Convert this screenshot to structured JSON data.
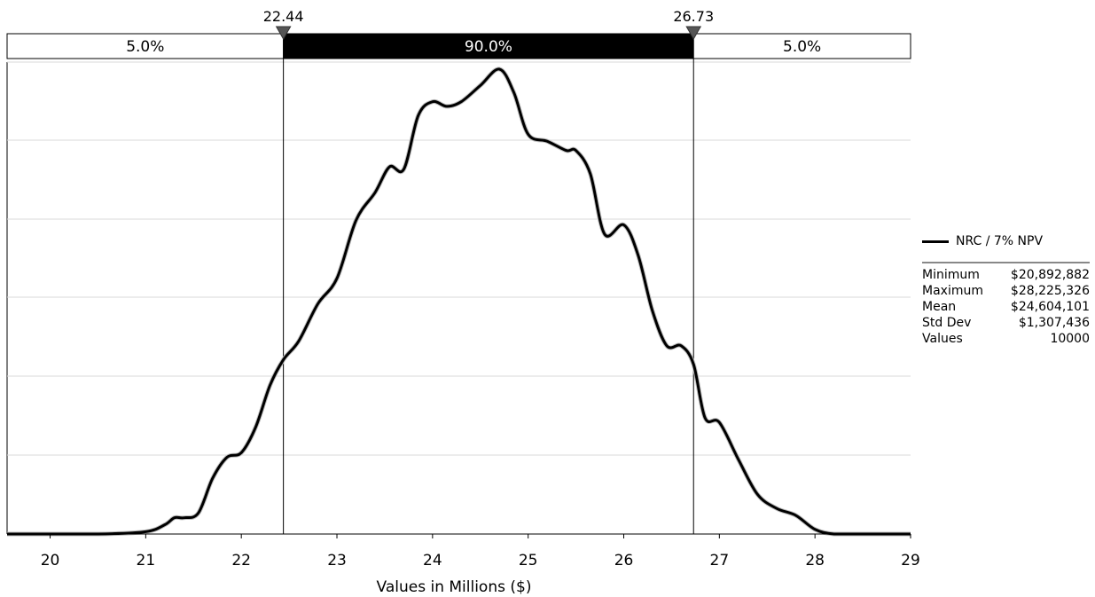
{
  "chart_data": {
    "type": "line",
    "xlabel": "Values in Millions ($)",
    "x_ticks": [
      "20",
      "21",
      "22",
      "23",
      "24",
      "25",
      "26",
      "27",
      "28",
      "29"
    ],
    "xlim": [
      19.55,
      29
    ],
    "grid": true,
    "series": [
      {
        "name": "NRC / 7% NPV",
        "color": "#000000",
        "x": [
          19.55,
          20.5,
          21.0,
          21.2,
          21.3,
          21.4,
          21.55,
          21.7,
          21.85,
          22.0,
          22.15,
          22.3,
          22.44,
          22.6,
          22.8,
          23.0,
          23.2,
          23.4,
          23.55,
          23.7,
          23.85,
          24.0,
          24.15,
          24.3,
          24.5,
          24.7,
          24.85,
          25.0,
          25.2,
          25.4,
          25.5,
          25.65,
          25.8,
          26.0,
          26.15,
          26.3,
          26.45,
          26.6,
          26.73,
          26.85,
          27.0,
          27.2,
          27.4,
          27.6,
          27.8,
          28.0,
          28.2,
          28.5,
          29.0
        ],
        "values": [
          0,
          0,
          0.5,
          2,
          3.5,
          3.5,
          4.5,
          12,
          16.5,
          17.5,
          23,
          32,
          37.5,
          41.5,
          49.5,
          55,
          67.5,
          73.5,
          79,
          78.5,
          90,
          93,
          92,
          93,
          96.5,
          100,
          95,
          86,
          84.5,
          82.5,
          82.5,
          77.5,
          64.5,
          66.5,
          60,
          48,
          40.5,
          40.5,
          36.5,
          25,
          24,
          16,
          8.5,
          5.5,
          4,
          1,
          0,
          0,
          0
        ],
        "ylim": [
          0,
          100
        ]
      }
    ],
    "percentile_markers": [
      {
        "value": 22.44,
        "label": "22.44"
      },
      {
        "value": 26.73,
        "label": "26.73"
      }
    ],
    "bands": [
      {
        "label": "5.0%",
        "filled": false
      },
      {
        "label": "90.0%",
        "filled": true
      },
      {
        "label": "5.0%",
        "filled": false
      }
    ],
    "legend": {
      "position": "right",
      "series_label": "NRC / 7% NPV",
      "stats": [
        {
          "name": "Minimum",
          "value": "$20,892,882"
        },
        {
          "name": "Maximum",
          "value": "$28,225,326"
        },
        {
          "name": "Mean",
          "value": "$24,604,101"
        },
        {
          "name": "Std Dev",
          "value": "$1,307,436"
        },
        {
          "name": "Values",
          "value": "10000"
        }
      ]
    }
  }
}
